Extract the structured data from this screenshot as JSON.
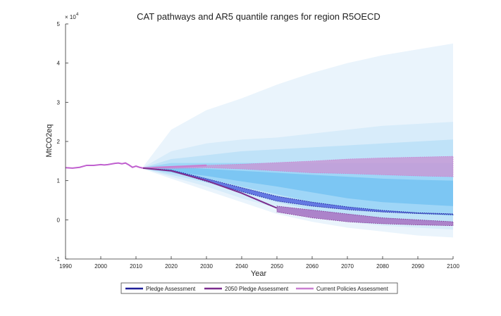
{
  "chart_data": {
    "type": "area",
    "title": "CAT pathways and AR5 quantile ranges for region R5OECD",
    "xlabel": "Year",
    "ylabel": "MtCO2eq",
    "y_exponent_label": "× 10",
    "y_exponent_power": "4",
    "xlim": [
      1990,
      2100
    ],
    "ylim": [
      -1,
      5
    ],
    "x_ticks": [
      1990,
      2000,
      2010,
      2020,
      2030,
      2040,
      2050,
      2060,
      2070,
      2080,
      2090,
      2100
    ],
    "y_ticks": [
      -1,
      0,
      1,
      2,
      3,
      4,
      5
    ],
    "grid": false,
    "legend_position": "bottom",
    "history": {
      "x": [
        1990,
        1992,
        1994,
        1996,
        1998,
        2000,
        2001,
        2002,
        2004,
        2005,
        2006,
        2007,
        2008,
        2009,
        2010,
        2011,
        2012
      ],
      "y": [
        1.33,
        1.32,
        1.34,
        1.39,
        1.39,
        1.41,
        1.4,
        1.41,
        1.44,
        1.45,
        1.43,
        1.45,
        1.4,
        1.34,
        1.37,
        1.34,
        1.32
      ]
    },
    "ar5_quantile_bands": [
      {
        "x": [
          2012,
          2020,
          2030,
          2040,
          2050,
          2060,
          2070,
          2080,
          2090,
          2100
        ],
        "lower": [
          1.3,
          1.05,
          0.75,
          0.45,
          0.15,
          -0.05,
          -0.2,
          -0.3,
          -0.4,
          -0.45
        ],
        "upper": [
          1.35,
          2.3,
          2.8,
          3.1,
          3.45,
          3.75,
          4.0,
          4.2,
          4.35,
          4.5
        ],
        "color": "#eaf4fc"
      },
      {
        "x": [
          2012,
          2020,
          2030,
          2040,
          2050,
          2060,
          2070,
          2080,
          2090,
          2100
        ],
        "lower": [
          1.31,
          1.1,
          0.85,
          0.55,
          0.3,
          0.1,
          -0.05,
          -0.15,
          -0.2,
          -0.25
        ],
        "upper": [
          1.34,
          1.75,
          1.95,
          2.05,
          2.1,
          2.2,
          2.3,
          2.4,
          2.45,
          2.5
        ],
        "color": "#d8ecfa"
      },
      {
        "x": [
          2012,
          2020,
          2030,
          2040,
          2050,
          2060,
          2070,
          2080,
          2090,
          2100
        ],
        "lower": [
          1.31,
          1.15,
          0.95,
          0.7,
          0.45,
          0.25,
          0.1,
          0.0,
          -0.05,
          -0.08
        ],
        "upper": [
          1.33,
          1.55,
          1.65,
          1.75,
          1.8,
          1.85,
          1.9,
          1.95,
          2.0,
          2.05
        ],
        "color": "#bfe2f8"
      },
      {
        "x": [
          2012,
          2020,
          2030,
          2040,
          2050,
          2060,
          2070,
          2080,
          2090,
          2100
        ],
        "lower": [
          1.32,
          1.2,
          1.05,
          0.85,
          0.65,
          0.45,
          0.3,
          0.2,
          0.15,
          0.1
        ],
        "upper": [
          1.33,
          1.45,
          1.45,
          1.45,
          1.45,
          1.45,
          1.45,
          1.45,
          1.45,
          1.45
        ],
        "color": "#9fd6f7"
      },
      {
        "x": [
          2012,
          2020,
          2030,
          2040,
          2050,
          2060,
          2070,
          2080,
          2090,
          2100
        ],
        "lower": [
          1.32,
          1.23,
          1.12,
          0.98,
          0.85,
          0.7,
          0.55,
          0.45,
          0.4,
          0.35
        ],
        "upper": [
          1.33,
          1.35,
          1.3,
          1.25,
          1.2,
          1.15,
          1.1,
          1.05,
          1.02,
          1.0
        ],
        "color": "#7cc6f3"
      }
    ],
    "series": [
      {
        "name": "Pledge Assessment",
        "color": "#1f1f99",
        "band_color": "#5a6ee0",
        "x": [
          2012,
          2020,
          2030,
          2040,
          2050,
          2060,
          2070,
          2080,
          2090,
          2100
        ],
        "upper": [
          1.32,
          1.27,
          1.05,
          0.82,
          0.6,
          0.45,
          0.33,
          0.24,
          0.18,
          0.15
        ],
        "lower": [
          1.32,
          1.25,
          0.98,
          0.72,
          0.48,
          0.35,
          0.26,
          0.2,
          0.16,
          0.13
        ]
      },
      {
        "name": "2050 Pledge Assessment",
        "color": "#7b2d8e",
        "band_color": "#a778c4",
        "x": [
          2012,
          2020,
          2030,
          2040,
          2050
        ],
        "center": [
          1.32,
          1.25,
          1.0,
          0.68,
          0.3
        ],
        "x_band": [
          2050,
          2060,
          2070,
          2080,
          2090,
          2100
        ],
        "upper": [
          0.35,
          0.25,
          0.15,
          0.05,
          0.0,
          -0.05
        ],
        "lower": [
          0.2,
          0.05,
          -0.05,
          -0.1,
          -0.13,
          -0.15
        ]
      },
      {
        "name": "Current Policies Assessment",
        "color": "#c97fd1",
        "band_color": "#c69ad6",
        "x": [
          2012,
          2020,
          2030,
          2040,
          2050,
          2060,
          2070,
          2080,
          2090,
          2100
        ],
        "upper": [
          1.32,
          1.35,
          1.39,
          1.42,
          1.46,
          1.5,
          1.55,
          1.58,
          1.6,
          1.62
        ],
        "lower": [
          1.32,
          1.31,
          1.33,
          1.3,
          1.25,
          1.2,
          1.18,
          1.15,
          1.12,
          1.1
        ]
      }
    ]
  }
}
